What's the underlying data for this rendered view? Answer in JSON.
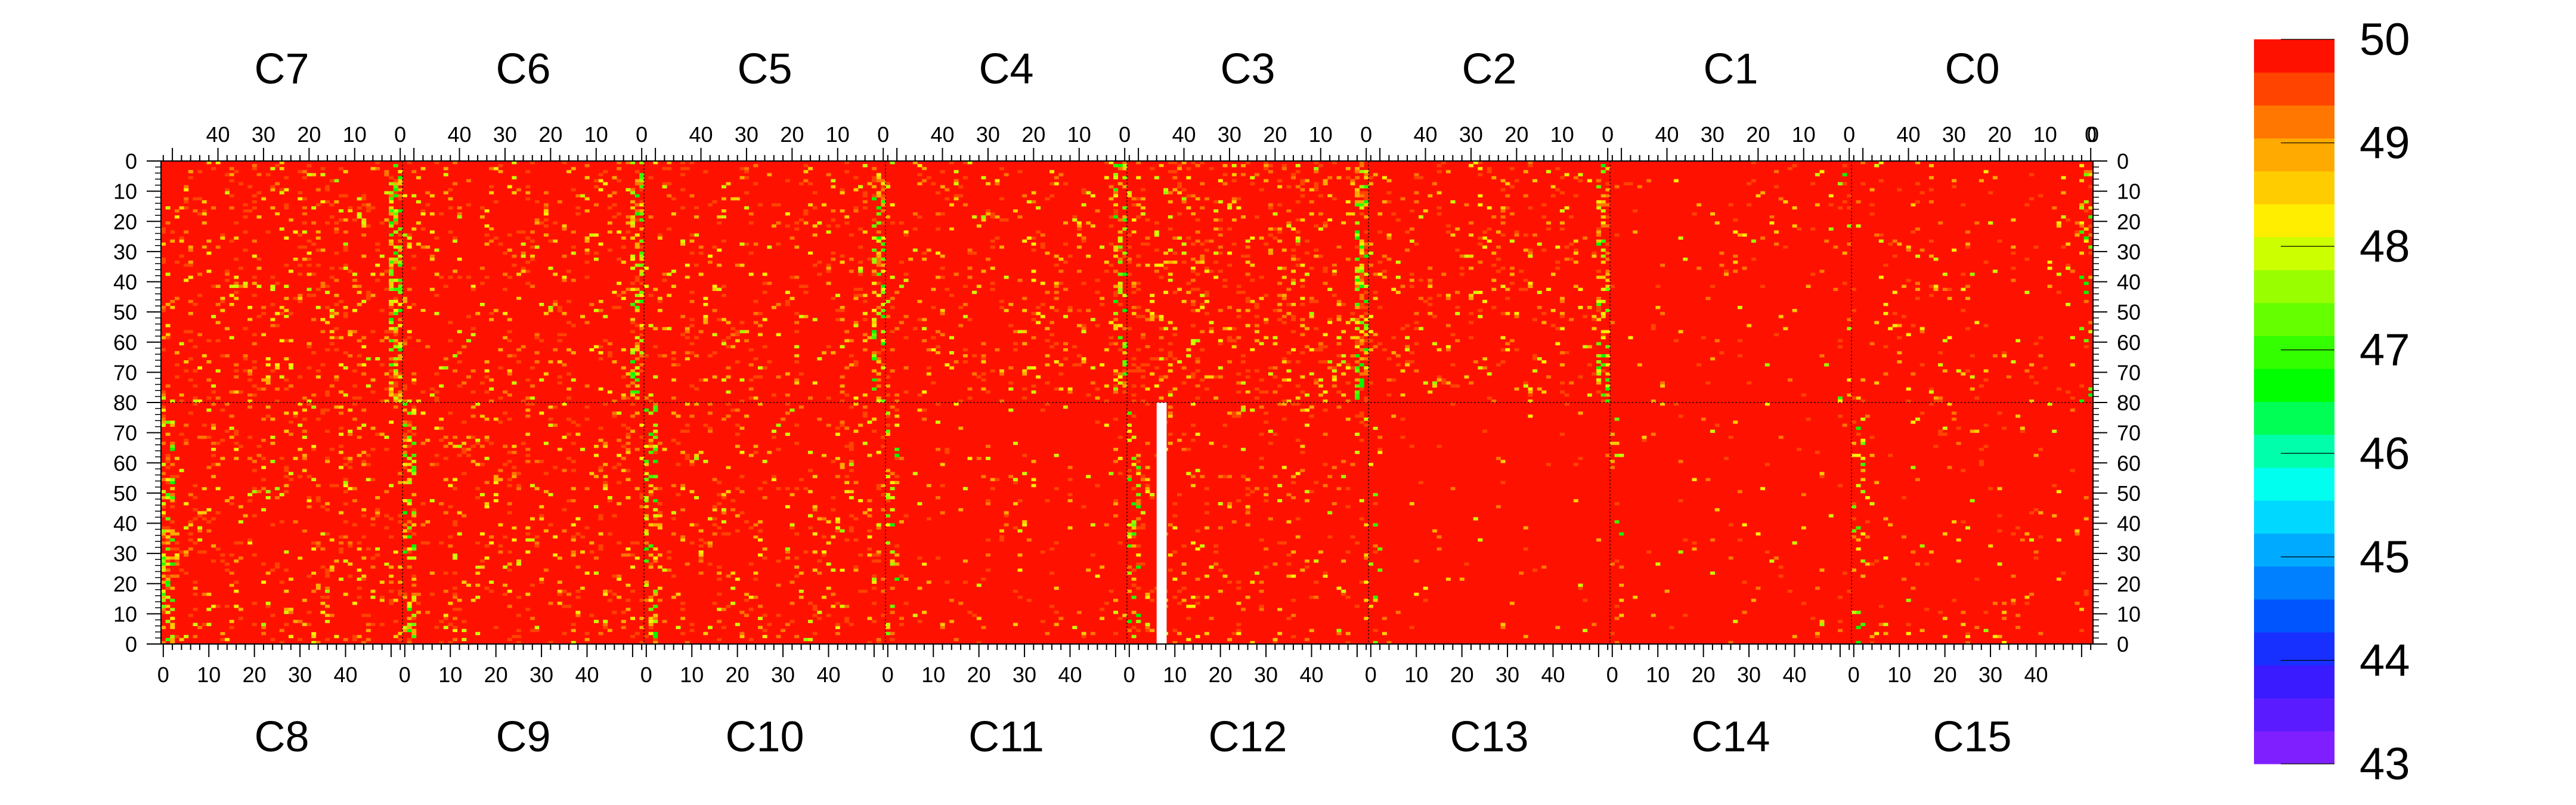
{
  "chart_data": {
    "type": "heatmap",
    "title": "",
    "xlabel": "",
    "ylabel": "",
    "top_chip_labels": [
      "C7",
      "C6",
      "C5",
      "C4",
      "C3",
      "C2",
      "C1",
      "C0"
    ],
    "bottom_chip_labels": [
      "C8",
      "C9",
      "C10",
      "C11",
      "C12",
      "C13",
      "C14",
      "C15"
    ],
    "chip_columns": 53,
    "chip_rows": 80,
    "column_tick_values": [
      0,
      10,
      20,
      30,
      40
    ],
    "row_tick_values": [
      0,
      10,
      20,
      30,
      40,
      50,
      60,
      70,
      80
    ],
    "zlim": [
      43,
      50
    ],
    "colorbar_ticks": [
      50,
      49,
      48,
      47,
      46,
      45,
      44,
      43
    ],
    "colorbar_palette": [
      "#7f1fff",
      "#5a1cff",
      "#3a1aff",
      "#1730ff",
      "#0055ff",
      "#0080ff",
      "#00aaff",
      "#00d8ff",
      "#00ffee",
      "#00ffaa",
      "#00ff55",
      "#00ff00",
      "#33ff00",
      "#66ff00",
      "#99ff00",
      "#ccff00",
      "#ffee00",
      "#ffcc00",
      "#ffaa00",
      "#ff7700",
      "#ff4400",
      "#ff1100"
    ],
    "base_value": 50,
    "noise_fraction": {
      "top": [
        0.14,
        0.11,
        0.11,
        0.1,
        0.16,
        0.1,
        0.03,
        0.05
      ],
      "bottom": [
        0.13,
        0.12,
        0.11,
        0.05,
        0.08,
        0.02,
        0.02,
        0.04
      ]
    },
    "hot_edge_columns_top": [
      0,
      0,
      0,
      0,
      0,
      0,
      0,
      0
    ],
    "hot_edge_columns_bottom": [
      0,
      0,
      0,
      0,
      0,
      0,
      0,
      0
    ],
    "dead_column": {
      "half": "bottom",
      "chip": 4,
      "column": 7,
      "value": null
    }
  }
}
